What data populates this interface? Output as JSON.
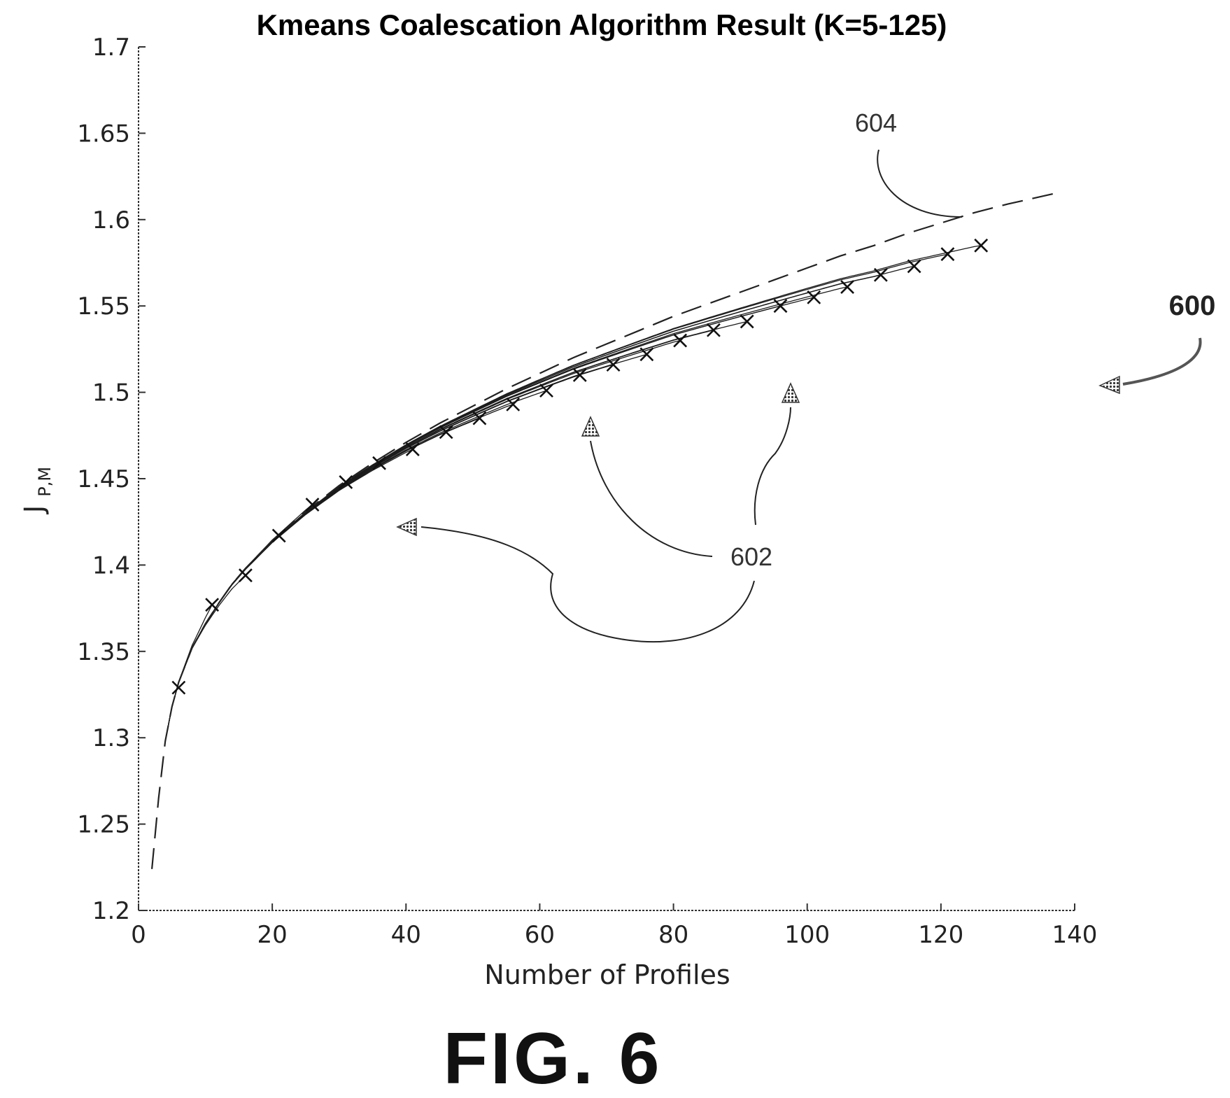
{
  "chart_data": {
    "type": "line",
    "title": "Kmeans Coalescation Algorithm Result (K=5-125)",
    "xlabel": "Number of Profiles",
    "ylabel_main": "J",
    "ylabel_sub": "P,M",
    "xlim": [
      0,
      140
    ],
    "ylim": [
      1.2,
      1.7
    ],
    "xticks": [
      "0",
      "20",
      "40",
      "60",
      "80",
      "100",
      "120",
      "140"
    ],
    "yticks": [
      "1.2",
      "1.25",
      "1.3",
      "1.35",
      "1.4",
      "1.45",
      "1.5",
      "1.55",
      "1.6",
      "1.65",
      "1.7"
    ],
    "grid": false,
    "markers": {
      "symbol": "x",
      "x": [
        6,
        11,
        16,
        21,
        26,
        31,
        36,
        41,
        46,
        51,
        56,
        61,
        66,
        71,
        76,
        81,
        86,
        91,
        96,
        101,
        106,
        111,
        116,
        121,
        126
      ],
      "y": [
        1.329,
        1.377,
        1.394,
        1.417,
        1.435,
        1.448,
        1.459,
        1.467,
        1.477,
        1.485,
        1.493,
        1.501,
        1.51,
        1.516,
        1.522,
        1.53,
        1.536,
        1.541,
        1.55,
        1.555,
        1.561,
        1.568,
        1.573,
        1.58,
        1.585
      ]
    },
    "envelope": {
      "x": [
        2,
        3,
        4,
        5,
        6,
        8,
        10,
        12,
        14,
        16,
        20,
        25,
        30,
        35,
        40,
        45,
        50,
        55,
        60,
        65,
        70,
        75,
        80,
        85,
        90,
        95,
        100,
        105,
        110,
        115,
        120,
        125,
        130,
        138
      ],
      "y": [
        1.224,
        1.265,
        1.298,
        1.318,
        1.332,
        1.352,
        1.366,
        1.378,
        1.389,
        1.398,
        1.414,
        1.431,
        1.446,
        1.459,
        1.471,
        1.482,
        1.492,
        1.502,
        1.511,
        1.52,
        1.528,
        1.536,
        1.544,
        1.551,
        1.558,
        1.565,
        1.572,
        1.579,
        1.585,
        1.592,
        1.598,
        1.604,
        1.609,
        1.616
      ]
    },
    "ref_604": "604",
    "ref_602": "602",
    "ref_600": "600",
    "caption": "FIG. 6",
    "colors": {
      "ink": "#111111",
      "arrow_fill": "#6e6e6e"
    }
  }
}
